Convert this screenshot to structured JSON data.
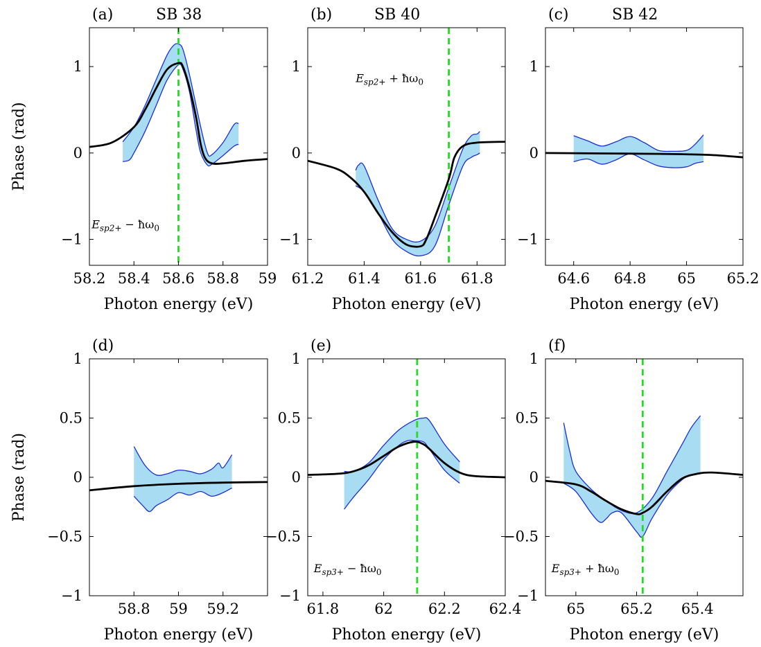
{
  "figure": {
    "ylabel": "Phase (rad)",
    "xlabel": "Photon energy (eV)",
    "colors": {
      "band_fill": "#a8dcf2",
      "band_edge": "#1a2fd6",
      "model_line": "#000000",
      "marker_line": "#22dd22"
    }
  },
  "chart_data": [
    {
      "panel": "a",
      "letter": "(a)",
      "title": "SB 38",
      "type": "line",
      "xlabel": "Photon energy (eV)",
      "ylabel": "Phase (rad)",
      "xlim": [
        58.2,
        59.0
      ],
      "ylim": [
        -1.3,
        1.45
      ],
      "xticks": [
        58.2,
        58.4,
        58.6,
        58.8,
        59.0
      ],
      "xtick_labels": [
        "58.2",
        "58.4",
        "58.6",
        "58.8",
        "59"
      ],
      "yticks": [
        -1,
        0,
        1
      ],
      "ytick_labels": [
        "−1",
        "0",
        "1"
      ],
      "model": {
        "x": [
          58.2,
          58.3,
          58.4,
          58.45,
          58.5,
          58.55,
          58.6,
          58.62,
          58.65,
          58.68,
          58.7,
          58.72,
          58.75,
          58.8,
          58.9,
          59.0
        ],
        "y": [
          0.07,
          0.12,
          0.3,
          0.5,
          0.75,
          0.97,
          1.04,
          1.0,
          0.75,
          0.4,
          0.1,
          -0.06,
          -0.12,
          -0.12,
          -0.09,
          -0.07
        ]
      },
      "band_upper": {
        "x": [
          58.35,
          58.4,
          58.45,
          58.5,
          58.55,
          58.58,
          58.6,
          58.62,
          58.65,
          58.7,
          58.73,
          58.75,
          58.8,
          58.85,
          58.87
        ],
        "y": [
          0.13,
          0.3,
          0.55,
          0.85,
          1.14,
          1.25,
          1.26,
          1.2,
          0.9,
          0.3,
          0.0,
          -0.02,
          0.12,
          0.33,
          0.34
        ]
      },
      "band_lower": {
        "x": [
          58.35,
          58.38,
          58.4,
          58.45,
          58.5,
          58.55,
          58.6,
          58.62,
          58.65,
          58.68,
          58.7,
          58.73,
          58.75,
          58.8,
          58.85,
          58.87
        ],
        "y": [
          -0.1,
          -0.08,
          0.0,
          0.25,
          0.55,
          0.85,
          1.02,
          0.97,
          0.7,
          0.25,
          0.0,
          -0.14,
          -0.13,
          -0.03,
          0.08,
          0.1
        ]
      },
      "vline_x": 58.6,
      "annotation": {
        "text": "E_sp2+ − ħω0",
        "base": "E",
        "sub": "sp2+",
        "rest": " − ħω",
        "rest_sub": "0",
        "x": 58.21,
        "y": -0.87
      }
    },
    {
      "panel": "b",
      "letter": "(b)",
      "title": "SB 40",
      "type": "line",
      "xlabel": "Photon energy (eV)",
      "ylabel": "",
      "xlim": [
        61.2,
        61.9
      ],
      "ylim": [
        -1.3,
        1.45
      ],
      "xticks": [
        61.2,
        61.4,
        61.6,
        61.8
      ],
      "xtick_labels": [
        "61.2",
        "61.4",
        "61.6",
        "61.8"
      ],
      "yticks": [
        -1,
        0,
        1
      ],
      "ytick_labels": [
        "−1",
        "0",
        "1"
      ],
      "model": {
        "x": [
          61.2,
          61.3,
          61.35,
          61.4,
          61.45,
          61.5,
          61.55,
          61.6,
          61.62,
          61.65,
          61.7,
          61.72,
          61.75,
          61.8,
          61.9
        ],
        "y": [
          -0.09,
          -0.18,
          -0.28,
          -0.45,
          -0.7,
          -0.92,
          -1.06,
          -1.08,
          -1.0,
          -0.75,
          -0.3,
          -0.05,
          0.08,
          0.12,
          0.13
        ]
      },
      "band_upper": {
        "x": [
          61.37,
          61.38,
          61.4,
          61.45,
          61.5,
          61.55,
          61.6,
          61.65,
          61.7,
          61.75,
          61.78,
          61.8,
          61.81
        ],
        "y": [
          -0.2,
          -0.14,
          -0.15,
          -0.55,
          -0.88,
          -1.0,
          -1.02,
          -0.85,
          -0.4,
          0.05,
          0.2,
          0.22,
          0.25
        ]
      },
      "band_lower": {
        "x": [
          61.37,
          61.4,
          61.45,
          61.5,
          61.55,
          61.6,
          61.65,
          61.7,
          61.75,
          61.78,
          61.8,
          61.81
        ],
        "y": [
          -0.38,
          -0.45,
          -0.7,
          -1.0,
          -1.14,
          -1.19,
          -1.08,
          -0.6,
          -0.15,
          -0.05,
          -0.02,
          0.0
        ]
      },
      "vline_x": 61.7,
      "annotation": {
        "text": "E_sp2+ + ħω0",
        "base": "E",
        "sub": "sp2+",
        "rest": " + ħω",
        "rest_sub": "0",
        "x": 61.37,
        "y": 0.82
      }
    },
    {
      "panel": "c",
      "letter": "(c)",
      "title": "SB 42",
      "type": "line",
      "xlabel": "Photon energy (eV)",
      "ylabel": "",
      "xlim": [
        64.5,
        65.2
      ],
      "ylim": [
        -1.3,
        1.45
      ],
      "xticks": [
        64.6,
        64.8,
        65.0,
        65.2
      ],
      "xtick_labels": [
        "64.6",
        "64.8",
        "65",
        "65.2"
      ],
      "yticks": [
        -1,
        0,
        1
      ],
      "ytick_labels": [
        "−1",
        "0",
        "1"
      ],
      "model": {
        "x": [
          64.5,
          64.7,
          64.9,
          65.0,
          65.1,
          65.2
        ],
        "y": [
          0.0,
          -0.005,
          -0.01,
          -0.015,
          -0.025,
          -0.05
        ]
      },
      "band_upper": {
        "x": [
          64.6,
          64.65,
          64.7,
          64.75,
          64.8,
          64.85,
          64.9,
          64.95,
          65.0,
          65.03,
          65.06
        ],
        "y": [
          0.2,
          0.14,
          0.08,
          0.13,
          0.19,
          0.12,
          0.03,
          0.02,
          0.03,
          0.1,
          0.21
        ]
      },
      "band_lower": {
        "x": [
          64.6,
          64.65,
          64.7,
          64.75,
          64.8,
          64.85,
          64.9,
          64.95,
          65.0,
          65.03,
          65.06
        ],
        "y": [
          -0.1,
          -0.07,
          -0.13,
          -0.08,
          -0.01,
          -0.08,
          -0.15,
          -0.17,
          -0.16,
          -0.12,
          -0.1
        ]
      },
      "vline_x": null,
      "annotation": null
    },
    {
      "panel": "d",
      "letter": "(d)",
      "title": "",
      "type": "line",
      "xlabel": "Photon energy (eV)",
      "ylabel": "Phase (rad)",
      "xlim": [
        58.6,
        59.4
      ],
      "ylim": [
        -1.0,
        1.0
      ],
      "xticks": [
        58.8,
        59.0,
        59.2
      ],
      "xtick_labels": [
        "58.8",
        "59",
        "59.2"
      ],
      "yticks": [
        -1,
        -0.5,
        0,
        0.5,
        1
      ],
      "ytick_labels": [
        "−1",
        "−0.5",
        "0",
        "0.5",
        "1"
      ],
      "model": {
        "x": [
          58.6,
          58.8,
          59.0,
          59.2,
          59.4
        ],
        "y": [
          -0.11,
          -0.075,
          -0.055,
          -0.045,
          -0.04
        ]
      },
      "band_upper": {
        "x": [
          58.8,
          58.85,
          58.9,
          58.95,
          59.0,
          59.05,
          59.1,
          59.15,
          59.18,
          59.2,
          59.24
        ],
        "y": [
          0.26,
          0.1,
          0.02,
          0.03,
          0.06,
          0.05,
          0.03,
          0.07,
          0.12,
          0.08,
          0.19
        ]
      },
      "band_lower": {
        "x": [
          58.8,
          58.84,
          58.87,
          58.9,
          58.95,
          59.0,
          59.05,
          59.1,
          59.15,
          59.2,
          59.24
        ],
        "y": [
          -0.16,
          -0.24,
          -0.29,
          -0.24,
          -0.19,
          -0.13,
          -0.15,
          -0.12,
          -0.16,
          -0.13,
          -0.09
        ]
      },
      "vline_x": null,
      "annotation": null
    },
    {
      "panel": "e",
      "letter": "(e)",
      "title": "",
      "type": "line",
      "xlabel": "Photon energy (eV)",
      "ylabel": "",
      "xlim": [
        61.75,
        62.4
      ],
      "ylim": [
        -1.0,
        1.0
      ],
      "xticks": [
        61.8,
        62.0,
        62.2,
        62.4
      ],
      "xtick_labels": [
        "61.8",
        "62",
        "62.2",
        "62.4"
      ],
      "yticks": [
        -1,
        -0.5,
        0,
        0.5,
        1
      ],
      "ytick_labels": [
        "−1",
        "−0.5",
        "0",
        "0.5",
        "1"
      ],
      "model": {
        "x": [
          61.75,
          61.85,
          61.9,
          61.95,
          62.0,
          62.05,
          62.1,
          62.13,
          62.15,
          62.2,
          62.25,
          62.3,
          62.4
        ],
        "y": [
          0.02,
          0.03,
          0.05,
          0.1,
          0.18,
          0.26,
          0.3,
          0.28,
          0.24,
          0.12,
          0.04,
          0.01,
          0.0
        ]
      },
      "band_upper": {
        "x": [
          61.87,
          61.9,
          61.95,
          62.0,
          62.05,
          62.1,
          62.13,
          62.15,
          62.2,
          62.25
        ],
        "y": [
          0.05,
          0.05,
          0.12,
          0.27,
          0.4,
          0.48,
          0.5,
          0.48,
          0.28,
          0.13
        ]
      },
      "band_lower": {
        "x": [
          61.87,
          61.9,
          61.95,
          62.0,
          62.05,
          62.08,
          62.1,
          62.13,
          62.15,
          62.2,
          62.25
        ],
        "y": [
          -0.27,
          -0.17,
          -0.02,
          0.15,
          0.27,
          0.31,
          0.31,
          0.3,
          0.24,
          0.06,
          -0.05
        ]
      },
      "vline_x": 62.11,
      "annotation": {
        "text": "E_sp3+ − ħω0",
        "base": "E",
        "sub": "sp3+",
        "rest": " − ħω",
        "rest_sub": "0",
        "x": 61.77,
        "y": -0.8
      }
    },
    {
      "panel": "f",
      "letter": "(f)",
      "title": "",
      "type": "line",
      "xlabel": "Photon energy (eV)",
      "ylabel": "",
      "xlim": [
        64.9,
        65.55
      ],
      "ylim": [
        -1.0,
        1.0
      ],
      "xticks": [
        65.0,
        65.2,
        65.4
      ],
      "xtick_labels": [
        "65",
        "65.2",
        "65.4"
      ],
      "yticks": [
        -1,
        -0.5,
        0,
        0.5,
        1
      ],
      "ytick_labels": [
        "−1",
        "−0.5",
        "0",
        "0.5",
        "1"
      ],
      "model": {
        "x": [
          64.9,
          65.0,
          65.05,
          65.1,
          65.15,
          65.2,
          65.22,
          65.25,
          65.3,
          65.35,
          65.4,
          65.45,
          65.55
        ],
        "y": [
          -0.03,
          -0.06,
          -0.12,
          -0.2,
          -0.27,
          -0.31,
          -0.3,
          -0.25,
          -0.12,
          -0.01,
          0.03,
          0.04,
          0.02
        ]
      },
      "band_upper": {
        "x": [
          64.96,
          64.98,
          65.0,
          65.05,
          65.1,
          65.15,
          65.2,
          65.25,
          65.3,
          65.35,
          65.38,
          65.41
        ],
        "y": [
          0.46,
          0.22,
          0.05,
          -0.1,
          -0.2,
          -0.28,
          -0.3,
          -0.18,
          0.05,
          0.28,
          0.42,
          0.52
        ]
      },
      "band_lower": {
        "x": [
          64.96,
          65.0,
          65.05,
          65.08,
          65.1,
          65.12,
          65.15,
          65.2,
          65.22,
          65.25,
          65.3,
          65.35,
          65.38,
          65.41
        ],
        "y": [
          -0.05,
          -0.12,
          -0.3,
          -0.38,
          -0.35,
          -0.3,
          -0.3,
          -0.46,
          -0.5,
          -0.35,
          -0.15,
          -0.02,
          0.02,
          0.04
        ]
      },
      "vline_x": 65.22,
      "annotation": {
        "text": "E_sp3+ + ħω0",
        "base": "E",
        "sub": "sp3+",
        "rest": " + ħω",
        "rest_sub": "0",
        "x": 64.92,
        "y": -0.8
      }
    }
  ]
}
